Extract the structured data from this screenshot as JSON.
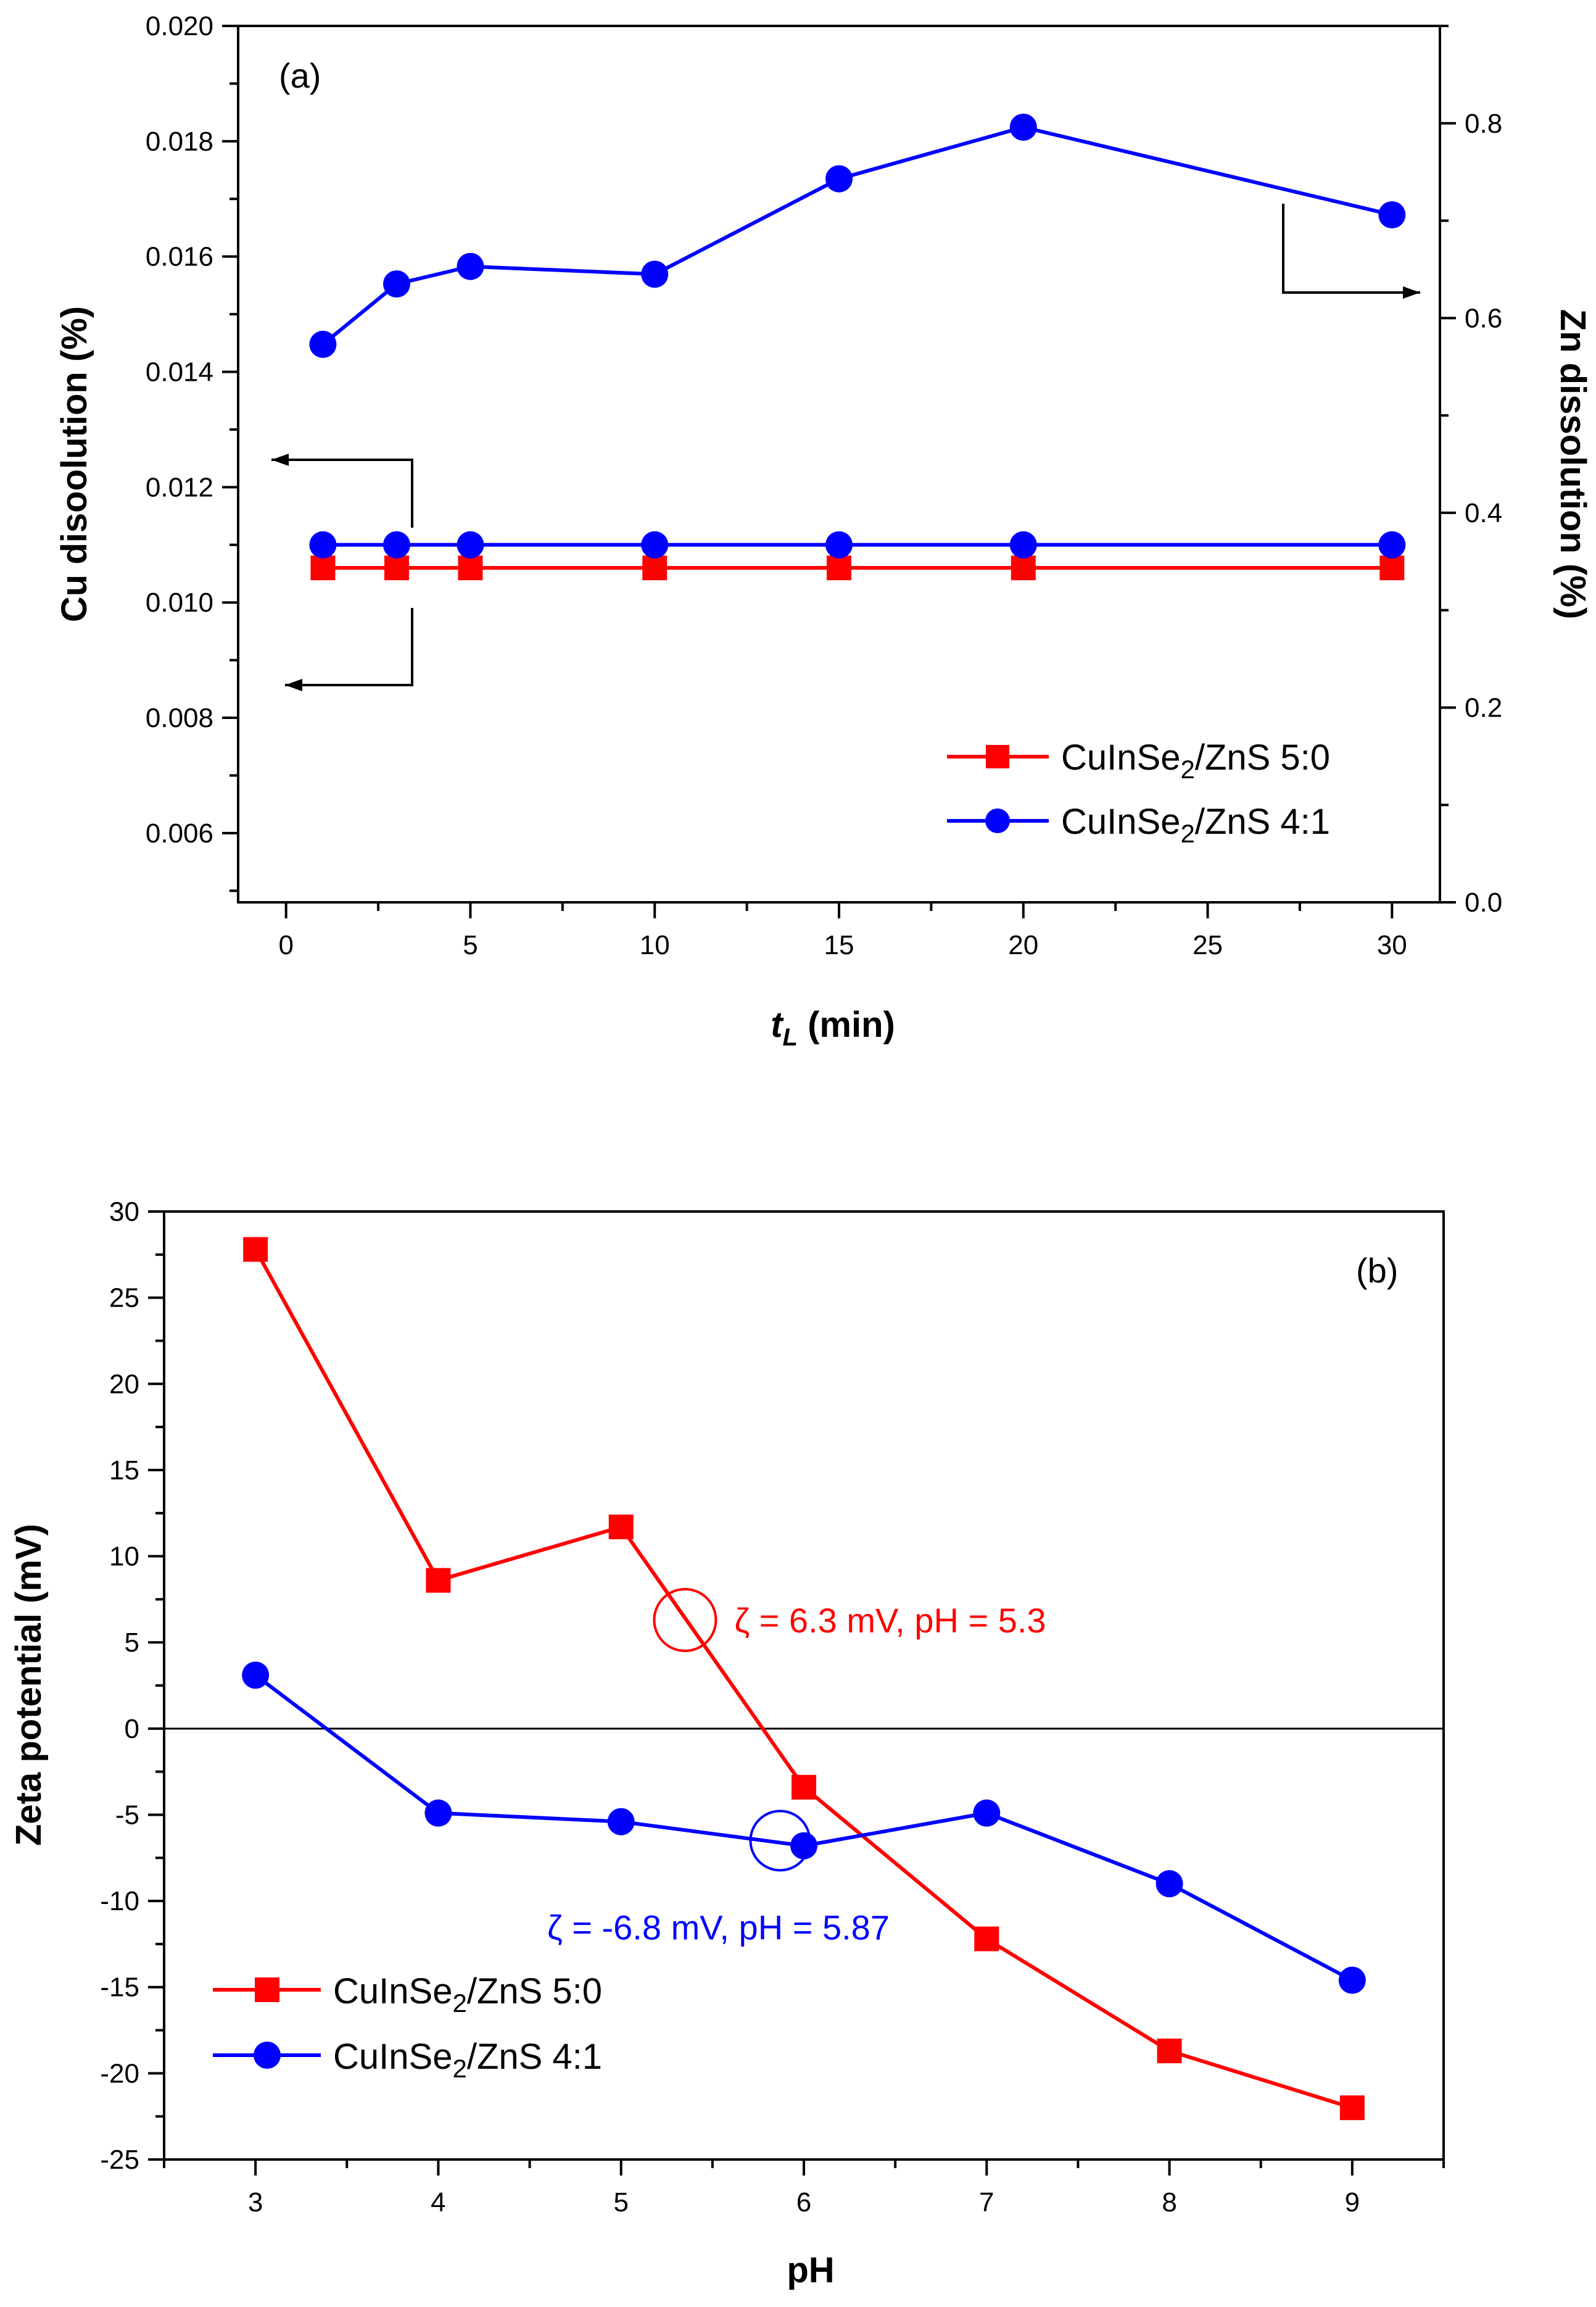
{
  "colors": {
    "red": "#ff0000",
    "blue": "#0000ff",
    "axis": "#000000"
  },
  "chart_data": [
    {
      "type": "line",
      "panel_label": "(a)",
      "xlabel_main": "t",
      "xlabel_sub": "L",
      "xlabel_unit": " (min)",
      "ylabel_left": "Cu disoolution (%)",
      "ylabel_right": "Zn dissolution (%)",
      "xlim": [
        -1.3,
        31.3
      ],
      "ylim_left": [
        0.0048,
        0.02
      ],
      "ylim_right": [
        0.0,
        0.9
      ],
      "xticks": [
        0,
        5,
        10,
        15,
        20,
        25,
        30
      ],
      "xtick_labels": [
        "0",
        "5",
        "10",
        "15",
        "20",
        "25",
        "30"
      ],
      "yticks_left": [
        0.006,
        0.008,
        0.01,
        0.012,
        0.014,
        0.016,
        0.018,
        0.02
      ],
      "ytick_labels_left": [
        "0.006",
        "0.008",
        "0.010",
        "0.012",
        "0.014",
        "0.016",
        "0.018",
        "0.020"
      ],
      "yticks_right": [
        0.0,
        0.2,
        0.4,
        0.6,
        0.8
      ],
      "ytick_labels_right": [
        "0.0",
        "0.2",
        "0.4",
        "0.6",
        "0.8"
      ],
      "series": [
        {
          "name": "CuInSe2/ZnS 5:0 (Cu)",
          "axis": "left",
          "color": "red",
          "marker": "square",
          "x": [
            1,
            3,
            5,
            10,
            15,
            20,
            30
          ],
          "y": [
            0.0106,
            0.0106,
            0.0106,
            0.0106,
            0.0106,
            0.0106,
            0.0106
          ]
        },
        {
          "name": "CuInSe2/ZnS 4:1 (Cu)",
          "axis": "left",
          "color": "blue",
          "marker": "circle",
          "x": [
            1,
            3,
            5,
            10,
            15,
            20,
            30
          ],
          "y": [
            0.011,
            0.011,
            0.011,
            0.011,
            0.011,
            0.011,
            0.011
          ]
        },
        {
          "name": "CuInSe2/ZnS 4:1 (Zn)",
          "axis": "right",
          "color": "blue",
          "marker": "circle",
          "x": [
            1,
            3,
            5,
            10,
            15,
            20,
            30
          ],
          "y": [
            0.573,
            0.635,
            0.653,
            0.645,
            0.743,
            0.796,
            0.706
          ]
        }
      ],
      "legend": [
        {
          "pre": "CuInSe",
          "sub": "2",
          "post": "/ZnS 5:0",
          "color": "red",
          "marker": "square"
        },
        {
          "pre": "CuInSe",
          "sub": "2",
          "post": "/ZnS 4:1",
          "color": "blue",
          "marker": "circle"
        }
      ],
      "legend_position": "bottom-right"
    },
    {
      "type": "line",
      "panel_label": "(b)",
      "xlabel": "pH",
      "ylabel": "Zeta potential (mV)",
      "xlim": [
        2.5,
        9.5
      ],
      "ylim": [
        -25,
        30
      ],
      "xticks": [
        3,
        4,
        5,
        6,
        7,
        8,
        9
      ],
      "xtick_labels": [
        "3",
        "4",
        "5",
        "6",
        "7",
        "8",
        "9"
      ],
      "yticks": [
        -25,
        -20,
        -15,
        -10,
        -5,
        0,
        5,
        10,
        15,
        20,
        25,
        30
      ],
      "ytick_labels": [
        "-25",
        "-20",
        "-15",
        "-10",
        "-5",
        "0",
        "5",
        "10",
        "15",
        "20",
        "25",
        "30"
      ],
      "zero_line": 0,
      "series": [
        {
          "name": "CuInSe2/ZnS 5:0",
          "color": "red",
          "marker": "square",
          "x": [
            3,
            4,
            5,
            6,
            7,
            8,
            9
          ],
          "y": [
            27.8,
            8.6,
            11.7,
            -3.4,
            -12.2,
            -18.7,
            -22.0
          ]
        },
        {
          "name": "CuInSe2/ZnS 4:1",
          "color": "blue",
          "marker": "circle",
          "x": [
            3,
            4,
            5,
            6,
            7,
            8,
            9
          ],
          "y": [
            3.1,
            -4.9,
            -5.4,
            -6.8,
            -4.9,
            -9.0,
            -14.6
          ]
        }
      ],
      "annotations": [
        {
          "text": "ζ = 6.3 mV, pH = 5.3",
          "color": "red",
          "x": 5.35,
          "y": 6.3
        },
        {
          "text": "ζ = -6.8 mV, pH = 5.87",
          "color": "blue",
          "x": 5.87,
          "y": -6.5
        }
      ],
      "legend": [
        {
          "pre": "CuInSe",
          "sub": "2",
          "post": "/ZnS 5:0",
          "color": "red",
          "marker": "square"
        },
        {
          "pre": "CuInSe",
          "sub": "2",
          "post": "/ZnS 4:1",
          "color": "blue",
          "marker": "circle"
        }
      ],
      "legend_position": "bottom-left"
    }
  ]
}
